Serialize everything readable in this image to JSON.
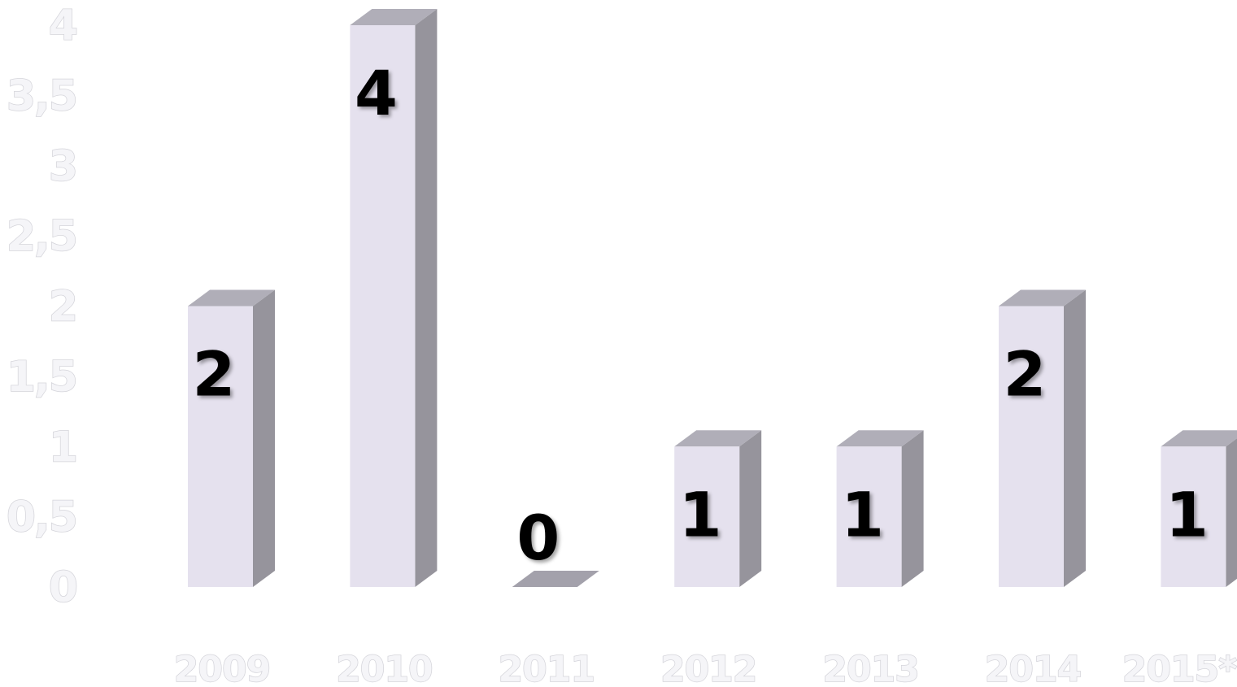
{
  "chart_data": {
    "type": "bar",
    "categories": [
      "2009",
      "2010",
      "2011",
      "2012",
      "2013",
      "2014",
      "2015*"
    ],
    "values": [
      2,
      4,
      0,
      1,
      1,
      2,
      1
    ],
    "data_labels": [
      "2",
      "4",
      "0",
      "1",
      "1",
      "2",
      "1"
    ],
    "y_ticks": [
      "0",
      "0,5",
      "1",
      "1,5",
      "2",
      "2,5",
      "3",
      "3,5",
      "4"
    ],
    "ylim": [
      0,
      4
    ],
    "grid": false,
    "legend": "none",
    "style": "3d-column",
    "colors": {
      "bar_front": "#e5e1ee",
      "bar_side": "#96949c",
      "bar_top": "#b0aeb8",
      "label": "#000000",
      "axis_text": "#f5f5f8"
    }
  }
}
